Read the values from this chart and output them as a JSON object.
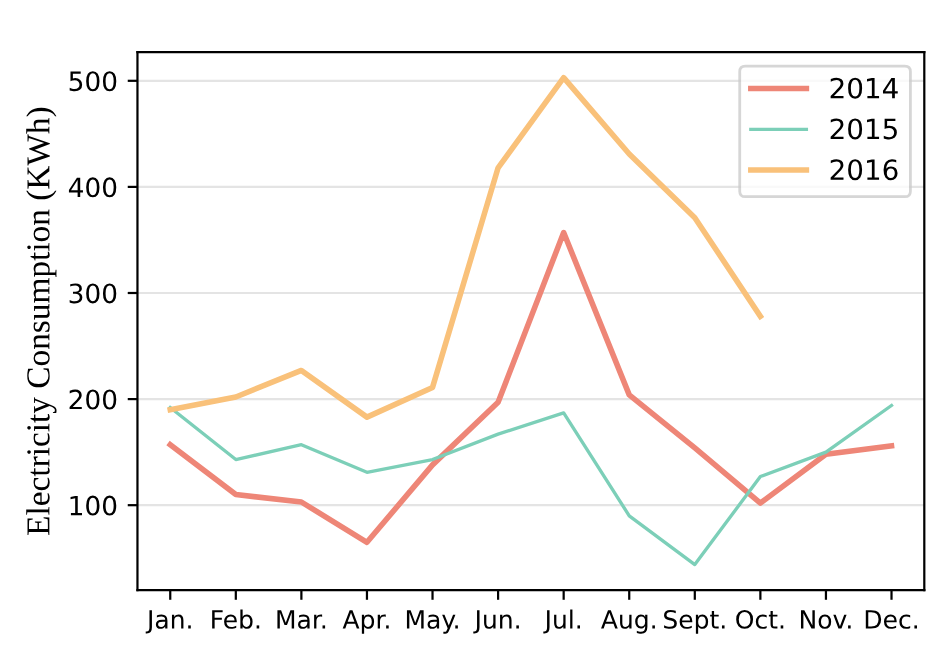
{
  "chart_data": {
    "type": "line",
    "ylabel": "Electricity Consumption (KWh)",
    "categories": [
      "Jan.",
      "Feb.",
      "Mar.",
      "Apr.",
      "May.",
      "Jun.",
      "Jul.",
      "Aug.",
      "Sept.",
      "Oct.",
      "Nov.",
      "Dec."
    ],
    "series": [
      {
        "name": "2014",
        "color": "#ee8677",
        "values": [
          157,
          110,
          103,
          65,
          138,
          197,
          357,
          204,
          154,
          102,
          148,
          156
        ]
      },
      {
        "name": "2015",
        "color": "#7ccfb8",
        "values": [
          192,
          143,
          157,
          131,
          143,
          167,
          187,
          90,
          44,
          127,
          150,
          194
        ]
      },
      {
        "name": "2016",
        "color": "#f9c17a",
        "values": [
          190,
          202,
          227,
          183,
          211,
          418,
          503,
          431,
          371,
          278,
          null,
          null
        ]
      }
    ],
    "ylim": [
      20,
      527
    ],
    "yticks": [
      100,
      200,
      300,
      400,
      500
    ],
    "grid": "y",
    "legend": "top right",
    "marker": "none",
    "line_style": "solid"
  }
}
